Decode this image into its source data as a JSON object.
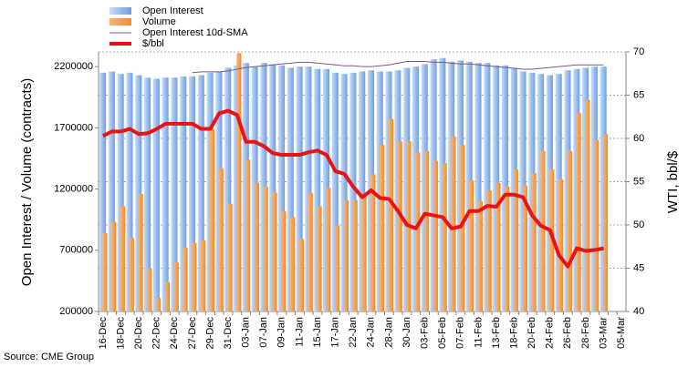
{
  "chart_data": {
    "type": "combo",
    "legend": "top-left",
    "grid": true,
    "ylabel": "Open Interest / Volume (contracts)",
    "y2label": "WTI, bbl/$",
    "source": "Source: CME Group",
    "categories": [
      "16-Dec",
      null,
      "18-Dec",
      null,
      "20-Dec",
      null,
      "22-Dec",
      null,
      "24-Dec",
      null,
      "27-Dec",
      null,
      "29-Dec",
      null,
      "31-Dec",
      null,
      "03-Jan",
      null,
      "07-Jan",
      null,
      "09-Jan",
      null,
      "11-Jan",
      null,
      "15-Jan",
      null,
      "17-Jan",
      null,
      "22-Jan",
      null,
      "24-Jan",
      null,
      "28-Jan",
      null,
      "30-Jan",
      null,
      "03-Feb",
      null,
      "05-Feb",
      null,
      "07-Feb",
      null,
      "11-Feb",
      null,
      "13-Feb",
      null,
      "18-Feb",
      null,
      "20-Feb",
      null,
      "24-Feb",
      null,
      "26-Feb",
      null,
      "28-Feb",
      null,
      "03-Mar",
      null,
      "05-Mar"
    ],
    "ylim": [
      200000,
      2320000
    ],
    "yticks": [
      200000,
      700000,
      1200000,
      1700000,
      2200000
    ],
    "y2lim": [
      40,
      70
    ],
    "y2ticks": [
      40,
      45,
      50,
      55,
      60,
      65,
      70
    ],
    "series": [
      {
        "name": "Open Interest",
        "kind": "bar",
        "color": "#7fa9e6",
        "values": [
          2150000,
          2160000,
          2140000,
          2150000,
          2130000,
          2110000,
          2100000,
          2110000,
          2110000,
          2120000,
          2120000,
          2130000,
          2150000,
          2160000,
          2190000,
          2210000,
          2230000,
          2200000,
          2230000,
          2220000,
          2210000,
          2190000,
          2200000,
          2200000,
          2180000,
          2180000,
          2150000,
          2140000,
          2150000,
          2160000,
          2170000,
          2160000,
          2160000,
          2170000,
          2190000,
          2200000,
          2220000,
          2260000,
          2270000,
          2240000,
          2250000,
          2240000,
          2230000,
          2230000,
          2210000,
          2210000,
          2190000,
          2160000,
          2150000,
          2140000,
          2130000,
          2140000,
          2170000,
          2180000,
          2190000,
          2200000,
          2200000,
          null,
          null
        ]
      },
      {
        "name": "Volume",
        "kind": "bar",
        "color": "#f39a45",
        "values": [
          840000,
          930000,
          1060000,
          800000,
          1160000,
          550000,
          310000,
          440000,
          600000,
          720000,
          760000,
          780000,
          1690000,
          1370000,
          1080000,
          2310000,
          1440000,
          1250000,
          1220000,
          1170000,
          1020000,
          970000,
          790000,
          1170000,
          1060000,
          1210000,
          900000,
          1110000,
          1110000,
          1150000,
          1320000,
          1560000,
          1770000,
          1590000,
          1590000,
          1500000,
          1510000,
          1430000,
          1410000,
          1630000,
          1560000,
          1270000,
          1100000,
          1190000,
          1250000,
          1220000,
          1360000,
          1230000,
          1330000,
          1510000,
          1360000,
          1280000,
          1510000,
          1820000,
          1930000,
          1600000,
          1650000,
          null,
          null
        ]
      },
      {
        "name": "Open Interest 10d-SMA",
        "kind": "line",
        "axis": "y2",
        "color": "#7b5a8c",
        "width": 1,
        "values": [
          null,
          null,
          null,
          null,
          null,
          null,
          null,
          null,
          null,
          null,
          67.6,
          67.7,
          67.7,
          67.7,
          67.8,
          68.0,
          68.2,
          68.3,
          68.4,
          68.5,
          68.6,
          68.7,
          68.8,
          68.8,
          68.7,
          68.6,
          68.5,
          68.4,
          68.4,
          68.3,
          68.3,
          68.4,
          68.5,
          68.7,
          68.9,
          68.9,
          68.9,
          68.8,
          68.8,
          68.7,
          68.6,
          68.6,
          68.5,
          68.4,
          68.3,
          68.2,
          68.1,
          68.0,
          68.0,
          68.1,
          68.2,
          68.3,
          68.4,
          68.5,
          68.5,
          68.5,
          68.5,
          null,
          null
        ]
      },
      {
        "name": "$/bbl",
        "kind": "line",
        "axis": "y2",
        "color": "#ee1111",
        "width": 4,
        "values": [
          60.3,
          60.8,
          60.8,
          61.1,
          60.5,
          60.6,
          61.1,
          61.7,
          61.7,
          61.7,
          61.7,
          61.1,
          61.1,
          62.9,
          63.2,
          62.7,
          59.6,
          59.6,
          59.1,
          58.3,
          58.1,
          58.1,
          58.1,
          58.4,
          58.6,
          58.1,
          56.2,
          55.9,
          54.4,
          53.2,
          54.0,
          53.1,
          53.0,
          51.6,
          50.0,
          49.6,
          51.3,
          51.1,
          50.9,
          49.6,
          49.8,
          51.6,
          51.6,
          52.2,
          52.1,
          53.5,
          53.5,
          53.2,
          51.1,
          49.9,
          49.4,
          46.5,
          45.2,
          47.3,
          47.0,
          47.1,
          47.3,
          null,
          null
        ]
      }
    ]
  }
}
